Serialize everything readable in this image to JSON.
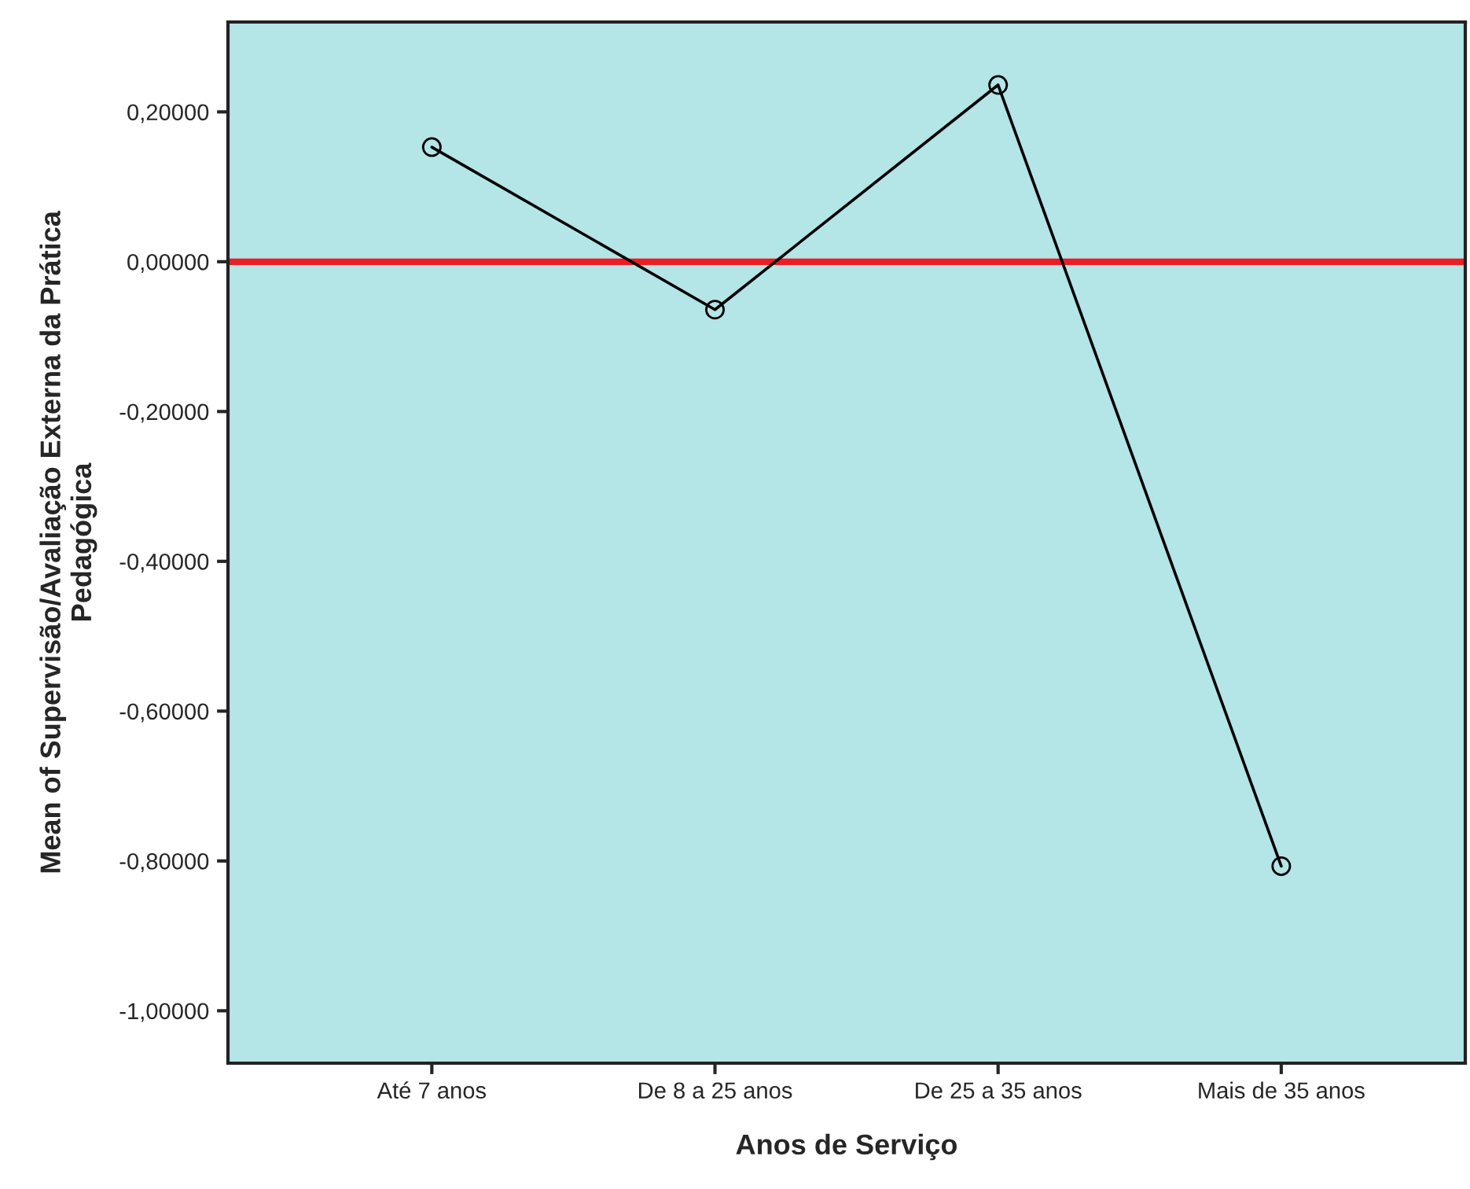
{
  "chart_data": {
    "type": "line",
    "xlabel": "Anos de Serviço",
    "ylabel": "Mean of Supervisão/Avaliação Externa da Prática\nPedagógica",
    "categories": [
      "Até 7 anos",
      "De 8 a 25 anos",
      "De 25 a 35 anos",
      "Mais de 35 anos"
    ],
    "series": [
      {
        "color": "#000000",
        "values": [
          0.153,
          -0.064,
          0.236,
          -0.807
        ]
      }
    ],
    "marker": "circle",
    "line_style": "solid",
    "ylim": [
      -1.07,
      0.32
    ],
    "yticks": [
      {
        "value": -1.0,
        "label": "-1,00000"
      },
      {
        "value": -0.8,
        "label": "-0,80000"
      },
      {
        "value": -0.6,
        "label": "-0,60000"
      },
      {
        "value": -0.4,
        "label": "-0,40000"
      },
      {
        "value": -0.2,
        "label": "-0,20000"
      },
      {
        "value": 0.0,
        "label": "0,00000"
      },
      {
        "value": 0.2,
        "label": "0,20000"
      }
    ],
    "ref_lines": [
      {
        "axis": "y",
        "value": 0.0,
        "color": "#ee1c24"
      }
    ],
    "grid": false,
    "legend": false
  }
}
